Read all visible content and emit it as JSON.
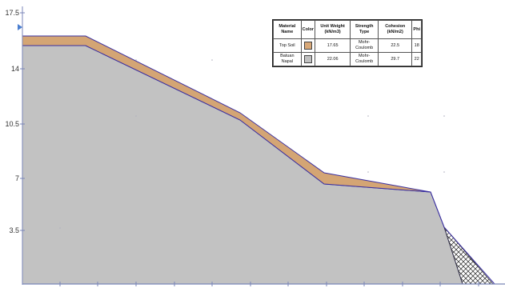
{
  "y_axis": {
    "ticks": [
      "17.5",
      "14",
      "10.5",
      "7",
      "3.5"
    ]
  },
  "legend_table": {
    "headers": {
      "material": "Material Name",
      "color": "Color",
      "unit_weight": "Unit Weight (kN/m3)",
      "strength_type": "Strength Type",
      "cohesion": "Cohesion (kN/m2)",
      "phi": "Phi"
    },
    "rows": [
      {
        "material": "Top Soil",
        "swatch_color": "#d8a878",
        "unit_weight": "17.65",
        "strength_type": "Mohr-Coulomb",
        "cohesion": "22.5",
        "phi": "18"
      },
      {
        "material": "Batuan Napal",
        "swatch_color": "#c0c0c0",
        "unit_weight": "22.06",
        "strength_type": "Mohr-Coulomb",
        "cohesion": "29.7",
        "phi": "22"
      }
    ]
  },
  "colors": {
    "top_soil": "#d4a574",
    "batuan_napal": "#c2c2c2",
    "boundary": "#3a2fa0",
    "axis": "#7a86b8"
  }
}
